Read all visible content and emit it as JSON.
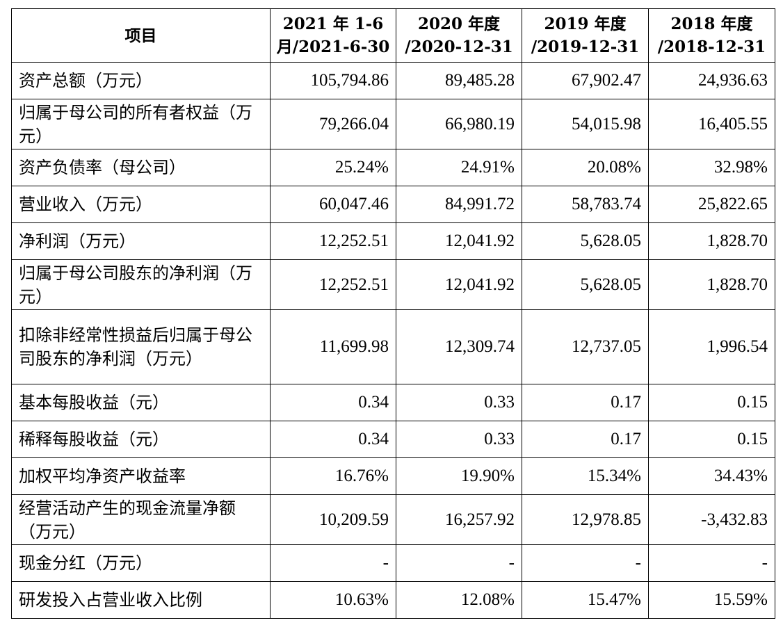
{
  "headers": {
    "item": "项目",
    "col1": [
      "2021 年 1-6",
      "月/2021-6-30"
    ],
    "col2": [
      "2020 年度",
      "/2020-12-31"
    ],
    "col3": [
      "2019 年度",
      "/2019-12-31"
    ],
    "col4": [
      "2018 年度",
      "/2018-12-31"
    ]
  },
  "rows": [
    {
      "label": "资产总额（万元）",
      "values": [
        "105,794.86",
        "89,485.28",
        "67,902.47",
        "24,936.63"
      ]
    },
    {
      "label": "归属于母公司的所有者权益（万元）",
      "values": [
        "79,266.04",
        "66,980.19",
        "54,015.98",
        "16,405.55"
      ]
    },
    {
      "label": "资产负债率（母公司）",
      "values": [
        "25.24%",
        "24.91%",
        "20.08%",
        "32.98%"
      ]
    },
    {
      "label": "营业收入（万元）",
      "values": [
        "60,047.46",
        "84,991.72",
        "58,783.74",
        "25,822.65"
      ]
    },
    {
      "label": "净利润（万元）",
      "values": [
        "12,252.51",
        "12,041.92",
        "5,628.05",
        "1,828.70"
      ]
    },
    {
      "label": "归属于母公司股东的净利润（万元）",
      "values": [
        "12,252.51",
        "12,041.92",
        "5,628.05",
        "1,828.70"
      ]
    },
    {
      "label": "扣除非经常性损益后归属于母公司股东的净利润（万元）",
      "values": [
        "11,699.98",
        "12,309.74",
        "12,737.05",
        "1,996.54"
      ]
    },
    {
      "label": "基本每股收益（元）",
      "values": [
        "0.34",
        "0.33",
        "0.17",
        "0.15"
      ]
    },
    {
      "label": "稀释每股收益（元）",
      "values": [
        "0.34",
        "0.33",
        "0.17",
        "0.15"
      ]
    },
    {
      "label": "加权平均净资产收益率",
      "values": [
        "16.76%",
        "19.90%",
        "15.34%",
        "34.43%"
      ]
    },
    {
      "label": "经营活动产生的现金流量净额（万元）",
      "values": [
        "10,209.59",
        "16,257.92",
        "12,978.85",
        "-3,432.83"
      ]
    },
    {
      "label": "现金分红（万元）",
      "values": [
        "-",
        "-",
        "-",
        "-"
      ]
    },
    {
      "label": "研发投入占营业收入比例",
      "values": [
        "10.63%",
        "12.08%",
        "15.47%",
        "15.59%"
      ]
    }
  ]
}
